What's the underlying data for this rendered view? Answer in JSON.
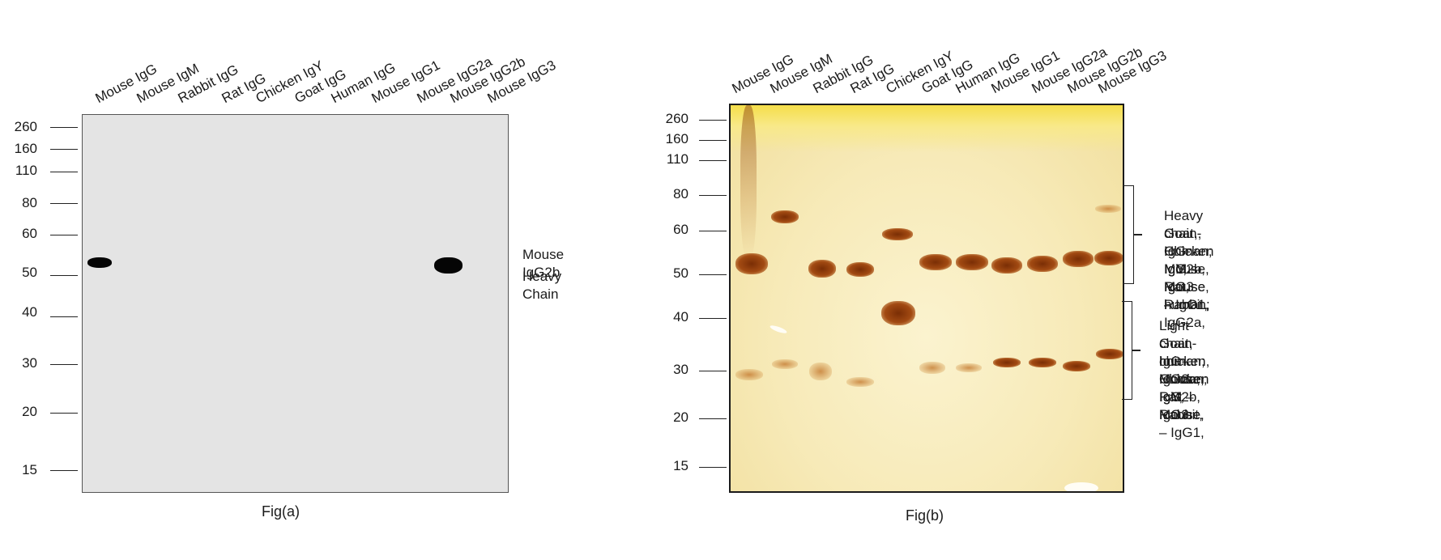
{
  "lanes": [
    "Mouse IgG",
    "Mouse IgM",
    "Rabbit IgG",
    "Rat IgG",
    "Chicken IgY",
    "Goat IgG",
    "Human IgG",
    "Mouse IgG1",
    "Mouse IgG2a",
    "Mouse IgG2b",
    "Mouse IgG3"
  ],
  "markers": [
    "260",
    "160",
    "110",
    "80",
    "60",
    "50",
    "40",
    "30",
    "20",
    "15"
  ],
  "fig_a": {
    "caption": "Fig(a)",
    "annotation_line1": "Mouse IgG2b",
    "annotation_line2": "Heavy Chain"
  },
  "fig_b": {
    "caption": "Fig(b)",
    "heavy_annotation": [
      "Heavy chain- IgG-Mouse, Rat, Rabbit,",
      "Goat,, Human; IgM –Mouse, human;",
      "Chicken IgY, Mouse – IgG1, IgG2a,",
      "IgG2b, IgG3"
    ],
    "light_annotation": [
      "Light chain- IgG-Mouse, Rat, Rabbit,",
      "Goat, chicken, Human; IgM –Mouse,",
      "human; Chicken IgY; Mouse – IgG1,",
      "IgG2a, IgG2b, IgG3"
    ]
  },
  "colors": {
    "blot_a_bg": "#e4e4e4",
    "blot_b_bg": "#f7eab8",
    "band_a": "#050505",
    "band_b": "#8b3a0a"
  }
}
